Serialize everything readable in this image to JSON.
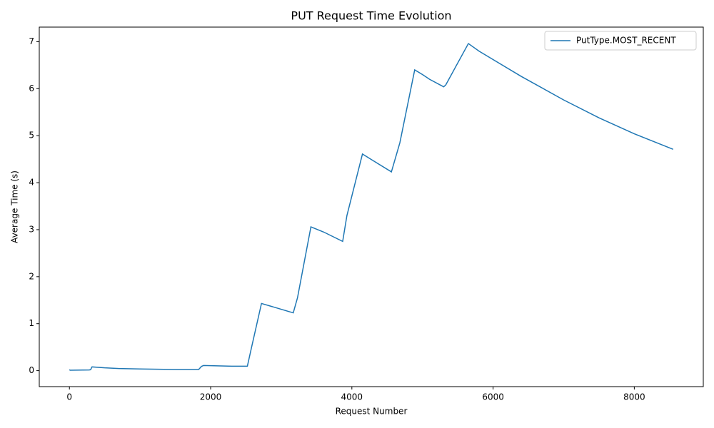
{
  "chart_data": {
    "type": "line",
    "title": "PUT Request Time Evolution",
    "x_label": "Request Number",
    "y_label": "Average Time (s)",
    "x": [
      0,
      10,
      280,
      300,
      320,
      500,
      700,
      1000,
      1500,
      1830,
      1870,
      1900,
      2300,
      2520,
      2580,
      2720,
      3170,
      3230,
      3420,
      3600,
      3870,
      3930,
      4150,
      4300,
      4560,
      4680,
      4890,
      5000,
      5100,
      5300,
      5330,
      5650,
      5800,
      6000,
      6400,
      7000,
      7500,
      8000,
      8550
    ],
    "series": [
      {
        "name": "PutType.MOST_RECENT",
        "color": "#1f77b4",
        "values": [
          0.02,
          0.01,
          0.015,
          0.02,
          0.08,
          0.06,
          0.045,
          0.035,
          0.025,
          0.025,
          0.09,
          0.11,
          0.095,
          0.095,
          0.5,
          1.43,
          1.23,
          1.55,
          3.06,
          2.95,
          2.75,
          3.3,
          4.61,
          4.47,
          4.23,
          4.85,
          6.4,
          6.3,
          6.2,
          6.04,
          6.08,
          6.96,
          6.8,
          6.62,
          6.26,
          5.76,
          5.38,
          5.04,
          4.71
        ]
      }
    ],
    "xlim": [
      -427,
      8977
    ],
    "ylim": [
      -0.34,
      7.31
    ],
    "xticks": [
      0,
      2000,
      4000,
      6000,
      8000
    ],
    "yticks": [
      0,
      1,
      2,
      3,
      4,
      5,
      6,
      7
    ],
    "legend": "upper right",
    "grid": false
  }
}
